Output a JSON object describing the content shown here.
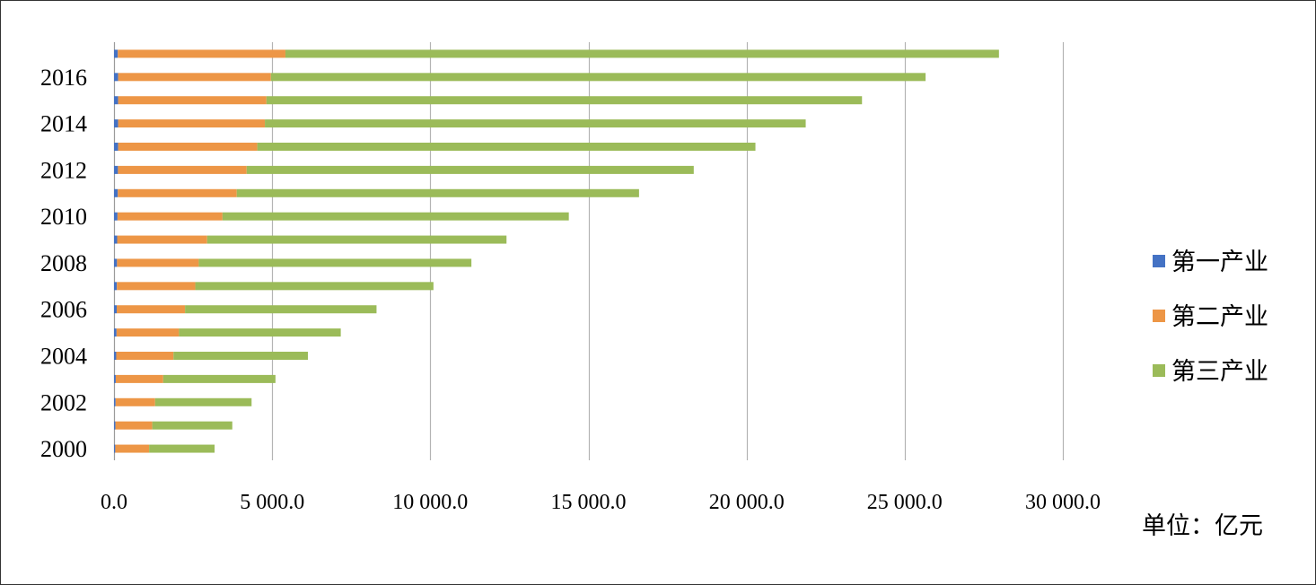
{
  "chart_data": {
    "type": "bar",
    "orientation": "horizontal",
    "stacked": true,
    "title": "",
    "xlabel": "",
    "ylabel": "",
    "unit_label": "单位：亿元",
    "xlim": [
      0,
      30000
    ],
    "xticks": [
      0,
      5000,
      10000,
      15000,
      20000,
      25000,
      30000
    ],
    "xtick_labels": [
      "0.0",
      "5 000.0",
      "10 000.0",
      "15 000.0",
      "20 000.0",
      "25 000.0",
      "30 000.0"
    ],
    "grid": "vertical",
    "legend_position": "right",
    "categories": [
      "2000",
      "2001",
      "2002",
      "2003",
      "2004",
      "2005",
      "2006",
      "2007",
      "2008",
      "2009",
      "2010",
      "2011",
      "2012",
      "2013",
      "2014",
      "2015",
      "2016",
      "2017"
    ],
    "ytick_labels": [
      "2000",
      "2002",
      "2004",
      "2006",
      "2008",
      "2010",
      "2012",
      "2014",
      "2016"
    ],
    "series": [
      {
        "name": "第一产业",
        "color": "#4472C4",
        "values": [
          40,
          45,
          50,
          55,
          70,
          80,
          85,
          90,
          95,
          100,
          110,
          120,
          125,
          130,
          130,
          130,
          130,
          120
        ]
      },
      {
        "name": "第二产业",
        "color": "#ED9646",
        "values": [
          1070,
          1165,
          1250,
          1500,
          1810,
          1975,
          2160,
          2480,
          2585,
          2845,
          3320,
          3760,
          4070,
          4400,
          4640,
          4690,
          4830,
          5300
        ]
      },
      {
        "name": "第三产业",
        "color": "#9BBB59",
        "values": [
          2070,
          2530,
          3050,
          3550,
          4250,
          5115,
          6055,
          7530,
          8620,
          9465,
          10950,
          12720,
          14135,
          15750,
          17100,
          18830,
          20700,
          22560
        ]
      }
    ]
  }
}
